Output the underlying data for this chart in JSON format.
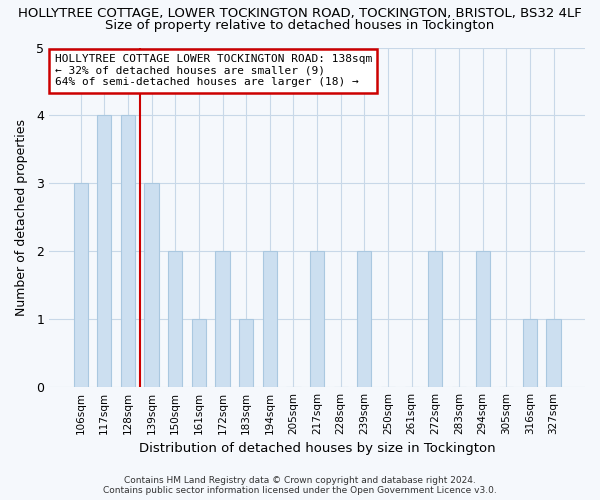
{
  "title": "HOLLYTREE COTTAGE, LOWER TOCKINGTON ROAD, TOCKINGTON, BRISTOL, BS32 4LF",
  "subtitle": "Size of property relative to detached houses in Tockington",
  "xlabel": "Distribution of detached houses by size in Tockington",
  "ylabel": "Number of detached properties",
  "bar_labels": [
    "106sqm",
    "117sqm",
    "128sqm",
    "139sqm",
    "150sqm",
    "161sqm",
    "172sqm",
    "183sqm",
    "194sqm",
    "205sqm",
    "217sqm",
    "228sqm",
    "239sqm",
    "250sqm",
    "261sqm",
    "272sqm",
    "283sqm",
    "294sqm",
    "305sqm",
    "316sqm",
    "327sqm"
  ],
  "bar_values": [
    3,
    4,
    4,
    3,
    2,
    1,
    2,
    1,
    2,
    0,
    2,
    0,
    2,
    0,
    0,
    2,
    0,
    2,
    0,
    1,
    1
  ],
  "bar_color": "#ccdff0",
  "bar_edge_color": "#aac8e0",
  "vline_index": 3,
  "annotation_text": "HOLLYTREE COTTAGE LOWER TOCKINGTON ROAD: 138sqm\n← 32% of detached houses are smaller (9)\n64% of semi-detached houses are larger (18) →",
  "annotation_box_color": "#ffffff",
  "annotation_box_edge_color": "#cc0000",
  "vline_color": "#cc0000",
  "ylim": [
    0,
    5
  ],
  "yticks": [
    0,
    1,
    2,
    3,
    4,
    5
  ],
  "footer_line1": "Contains HM Land Registry data © Crown copyright and database right 2024.",
  "footer_line2": "Contains public sector information licensed under the Open Government Licence v3.0.",
  "bg_color": "#f5f8fc",
  "plot_bg_color": "#f5f8fc",
  "grid_color": "#c8d8e8",
  "title_fontsize": 9.5,
  "subtitle_fontsize": 9.5
}
